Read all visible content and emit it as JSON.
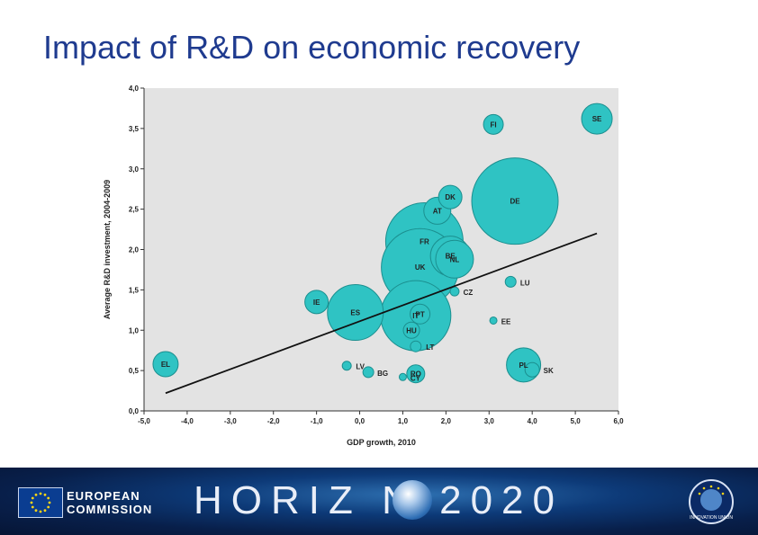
{
  "slide": {
    "title": "Impact of R&D on economic recovery"
  },
  "chart_data": {
    "type": "scatter",
    "xlabel": "GDP growth, 2010",
    "ylabel": "Average R&D investment, 2004-2009",
    "xlim": [
      -5.0,
      6.0
    ],
    "ylim": [
      0.0,
      4.0
    ],
    "x_ticks": [
      "-5,0",
      "-4,0",
      "-3,0",
      "-2,0",
      "-1,0",
      "0,0",
      "1,0",
      "2,0",
      "3,0",
      "4,0",
      "5,0",
      "6,0"
    ],
    "y_ticks": [
      "0,0",
      "0,5",
      "1,0",
      "1,5",
      "2,0",
      "2,5",
      "3,0",
      "3,5",
      "4,0"
    ],
    "x_tick_values": [
      -5,
      -4,
      -3,
      -2,
      -1,
      0,
      1,
      2,
      3,
      4,
      5,
      6
    ],
    "y_tick_values": [
      0,
      0.5,
      1,
      1.5,
      2,
      2.5,
      3,
      3.5,
      4
    ],
    "bubble_color": "#2fc3c3",
    "background": "#e3e3e3",
    "grid": false,
    "points": [
      {
        "label": "SE",
        "x": 5.5,
        "y": 3.62,
        "size": 17
      },
      {
        "label": "FI",
        "x": 3.1,
        "y": 3.55,
        "size": 11
      },
      {
        "label": "DE",
        "x": 3.6,
        "y": 2.6,
        "size": 48
      },
      {
        "label": "DK",
        "x": 2.1,
        "y": 2.65,
        "size": 13
      },
      {
        "label": "AT",
        "x": 1.8,
        "y": 2.48,
        "size": 15
      },
      {
        "label": "FR",
        "x": 1.5,
        "y": 2.1,
        "size": 43
      },
      {
        "label": "BE",
        "x": 2.1,
        "y": 1.92,
        "size": 22
      },
      {
        "label": "NL",
        "x": 2.2,
        "y": 1.88,
        "size": 21
      },
      {
        "label": "UK",
        "x": 1.4,
        "y": 1.78,
        "size": 43
      },
      {
        "label": "LU",
        "x": 3.5,
        "y": 1.6,
        "size": 6
      },
      {
        "label": "CZ",
        "x": 2.2,
        "y": 1.48,
        "size": 5
      },
      {
        "label": "IE",
        "x": -1.0,
        "y": 1.35,
        "size": 13
      },
      {
        "label": "ES",
        "x": -0.1,
        "y": 1.22,
        "size": 31
      },
      {
        "label": "PT",
        "x": 1.4,
        "y": 1.2,
        "size": 11
      },
      {
        "label": "IT",
        "x": 1.3,
        "y": 1.18,
        "size": 39
      },
      {
        "label": "EE",
        "x": 3.1,
        "y": 1.12,
        "size": 4
      },
      {
        "label": "EL",
        "x": -4.5,
        "y": 0.58,
        "size": 14
      },
      {
        "label": "LV",
        "x": -0.3,
        "y": 0.56,
        "size": 5
      },
      {
        "label": "BG",
        "x": 0.2,
        "y": 0.48,
        "size": 6
      },
      {
        "label": "CY",
        "x": 1.0,
        "y": 0.42,
        "size": 4
      },
      {
        "label": "RO",
        "x": 1.3,
        "y": 0.46,
        "size": 10
      },
      {
        "label": "LT",
        "x": 1.3,
        "y": 0.8,
        "size": 6
      },
      {
        "label": "HU",
        "x": 1.2,
        "y": 1.0,
        "size": 9
      },
      {
        "label": "PL",
        "x": 3.8,
        "y": 0.57,
        "size": 19
      },
      {
        "label": "SK",
        "x": 4.0,
        "y": 0.51,
        "size": 8
      }
    ],
    "trendline": {
      "x": [
        -4.5,
        5.5
      ],
      "y": [
        0.22,
        2.2
      ]
    }
  },
  "footer": {
    "org_line1": "EUROPEAN",
    "org_line2": "COMMISSION",
    "programme": "HORIZ N 2020",
    "badge": "INNOVATION UNION"
  }
}
